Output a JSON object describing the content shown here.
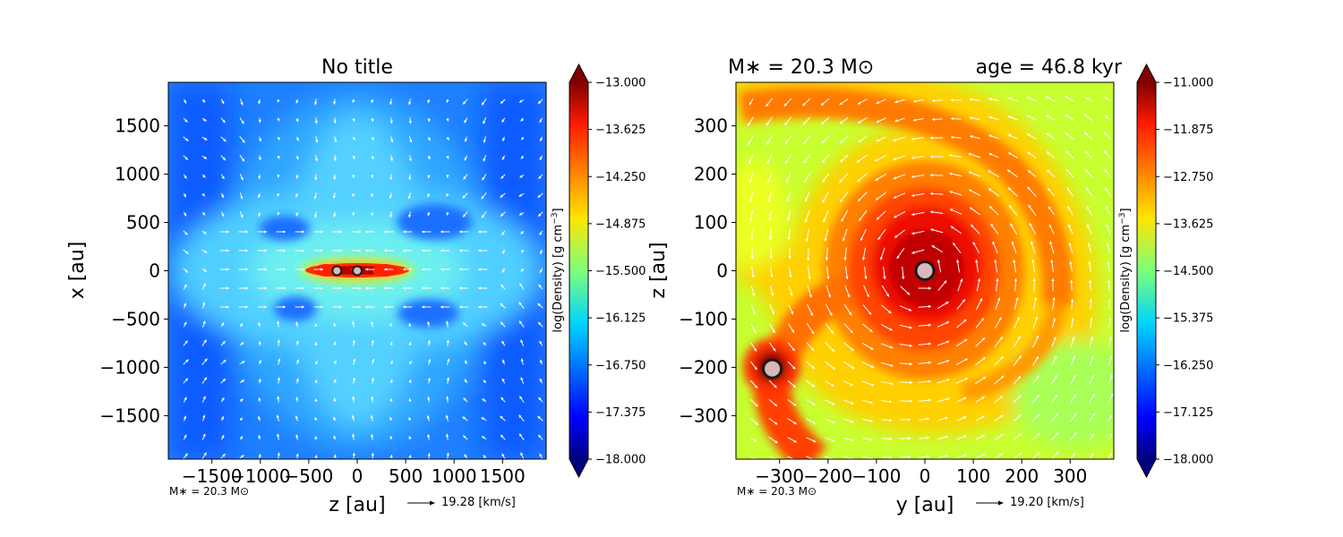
{
  "chart_data": [
    {
      "type": "heatmap",
      "panel": "left",
      "title": "No title",
      "xlabel": "z [au]",
      "ylabel": "x [au]",
      "xlim": [
        -1950,
        1950
      ],
      "ylim": [
        -1950,
        1950
      ],
      "x_ticks": [
        -1500,
        -1000,
        -500,
        0,
        500,
        1000,
        1500
      ],
      "y_ticks": [
        -1500,
        -1000,
        -500,
        0,
        500,
        1000,
        1500
      ],
      "x_tick_labels": [
        "−1500",
        "−1000",
        "−500",
        "0",
        "500",
        "1000",
        "1500"
      ],
      "y_tick_labels": [
        "−1500",
        "−1000",
        "−500",
        "0",
        "500",
        "1000",
        "1500"
      ],
      "colorbar": {
        "label": "log(Density) [g cm$^{-3}$]",
        "label_text": "log(Density) [g cm",
        "label_sup": "−3",
        "label_end": "]",
        "range": [
          -18.0,
          -13.0
        ],
        "ticks": [
          -13.0,
          -13.625,
          -14.25,
          -14.875,
          -15.5,
          -16.125,
          -16.75,
          -17.375,
          -18.0
        ],
        "tick_labels": [
          "−13.000",
          "−13.625",
          "−14.250",
          "−14.875",
          "−15.500",
          "−16.125",
          "−16.750",
          "−17.375",
          "−18.000"
        ],
        "colormap": "jet"
      },
      "sinks": [
        {
          "x": -210,
          "y": 0
        },
        {
          "x": 0,
          "y": 0
        }
      ],
      "footnote": "M∗ = 20.3 M⊙",
      "velocity_key": "19.28 [km/s]"
    },
    {
      "type": "heatmap",
      "panel": "right",
      "title_left": "M∗ = 20.3 M⊙",
      "title_right": "age = 46.8 kyr",
      "xlabel": "y [au]",
      "ylabel": "z [au]",
      "xlim": [
        -390,
        390
      ],
      "ylim": [
        -390,
        390
      ],
      "x_ticks": [
        -300,
        -200,
        -100,
        0,
        100,
        200,
        300
      ],
      "y_ticks": [
        -300,
        -200,
        -100,
        0,
        100,
        200,
        300
      ],
      "x_tick_labels": [
        "−300",
        "−200",
        "−100",
        "0",
        "100",
        "200",
        "300"
      ],
      "y_tick_labels": [
        "−300",
        "−200",
        "−100",
        "0",
        "100",
        "200",
        "300"
      ],
      "colorbar": {
        "label": "log(Density) [g cm$^{-3}$]",
        "label_text": "log(Density) [g cm",
        "label_sup": "−3",
        "label_end": "]",
        "range": [
          -18.0,
          -11.0
        ],
        "ticks": [
          -11.0,
          -11.875,
          -12.75,
          -13.625,
          -14.5,
          -15.375,
          -16.25,
          -17.125,
          -18.0
        ],
        "tick_labels": [
          "−11.000",
          "−11.875",
          "−12.750",
          "−13.625",
          "−14.500",
          "−15.375",
          "−16.250",
          "−17.125",
          "−18.000"
        ],
        "colormap": "jet"
      },
      "sinks": [
        {
          "x": 0,
          "y": 0
        },
        {
          "x": -315,
          "y": -203
        }
      ],
      "footnote": "M∗ = 20.3 M⊙",
      "velocity_key": "19.20 [km/s]"
    }
  ]
}
